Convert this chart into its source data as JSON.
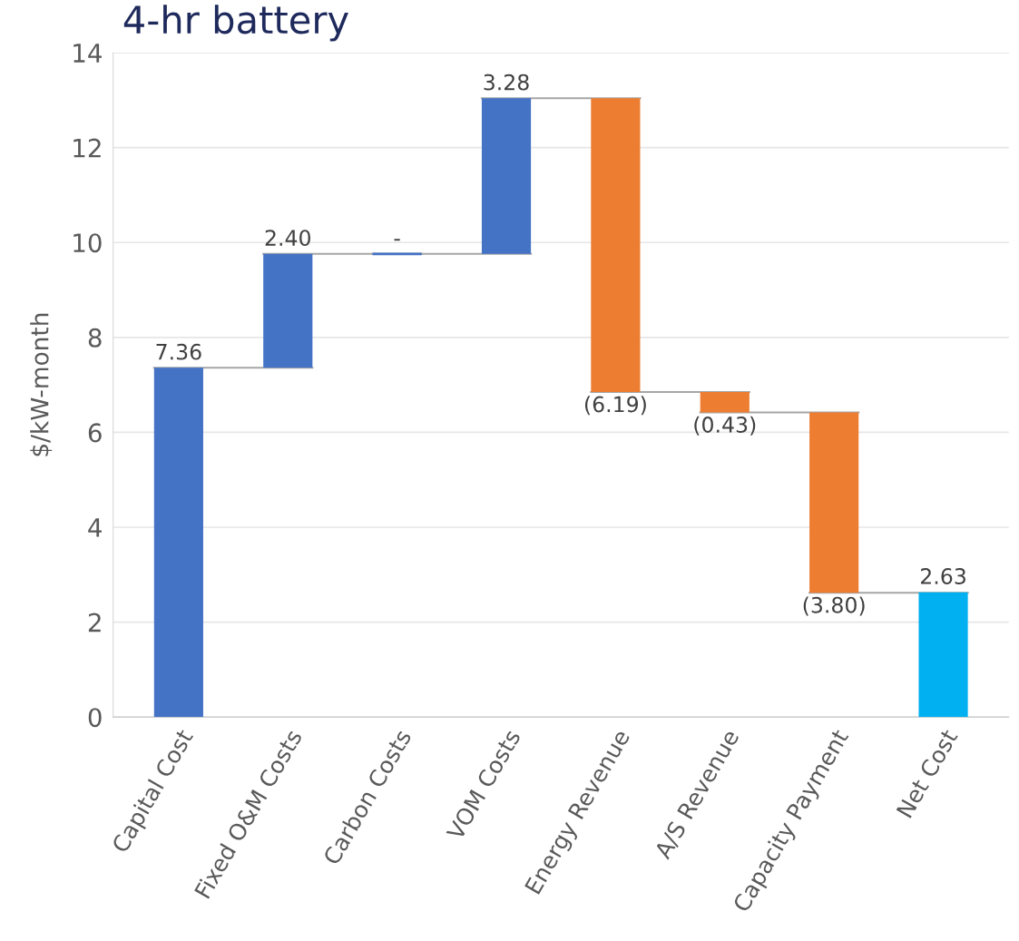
{
  "chart_data": {
    "type": "bar",
    "title": "4-hr battery",
    "ylabel": "$/kW-month",
    "categories": [
      "Capital Cost",
      "Fixed O&M Costs",
      "Carbon Costs",
      "VOM Costs",
      "Energy Revenue",
      "A/S Revenue",
      "Capacity Payment",
      "Net Cost"
    ],
    "base": [
      0,
      7.36,
      9.76,
      9.76,
      13.04,
      6.85,
      6.42,
      0
    ],
    "values": [
      7.36,
      2.4,
      0,
      3.28,
      -6.19,
      -0.43,
      -3.8,
      2.63
    ],
    "colors": [
      "#4472c4",
      "#4472c4",
      "#4472c4",
      "#4472c4",
      "#ed7d31",
      "#ed7d31",
      "#ed7d31",
      "#00b0f0"
    ],
    "value_labels": [
      "7.36",
      "2.40",
      "-",
      "3.28",
      "(6.19)",
      "(0.43)",
      "(3.80)",
      "2.63"
    ],
    "ylim": [
      0,
      14
    ],
    "yticks": [
      0,
      2,
      4,
      6,
      8,
      10,
      12,
      14
    ],
    "grid": "y",
    "legend": false
  }
}
